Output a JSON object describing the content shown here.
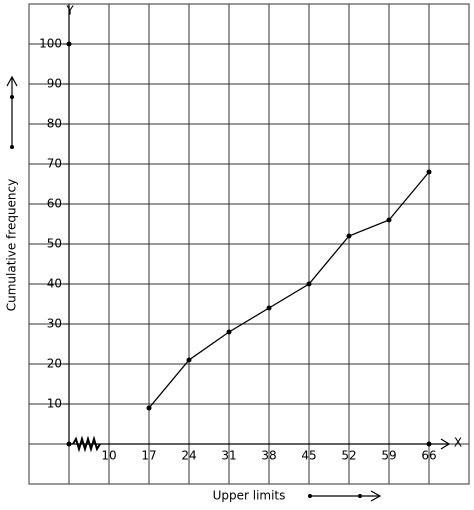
{
  "chart_data": {
    "type": "line",
    "x_axis_label": "X",
    "y_axis_label": "Y",
    "x_label": "Upper limits",
    "y_label": "Cumulative frequency",
    "categories": [
      "10",
      "17",
      "24",
      "31",
      "38",
      "45",
      "52",
      "59",
      "66"
    ],
    "values": [
      null,
      9,
      21,
      28,
      34,
      40,
      52,
      56,
      68
    ],
    "color": "#000000",
    "ylim": [
      -10,
      110
    ],
    "yticks": [
      10,
      20,
      30,
      40,
      50,
      60,
      70,
      80,
      90,
      100
    ],
    "grid": true
  }
}
